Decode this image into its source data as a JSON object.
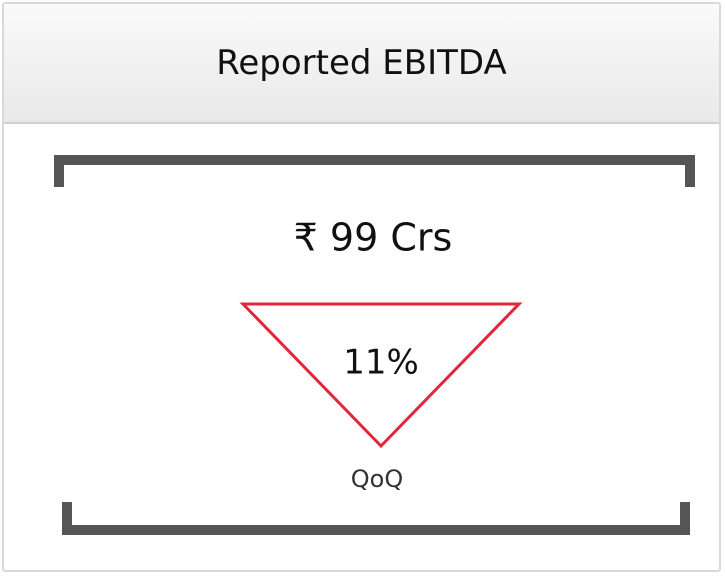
{
  "header": {
    "title": "Reported EBITDA"
  },
  "kpi": {
    "value": "₹ 99 Crs",
    "change": "11%",
    "period": "QoQ"
  }
}
